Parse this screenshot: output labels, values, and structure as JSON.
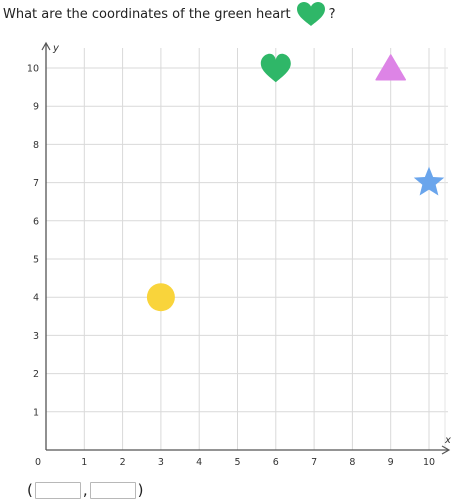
{
  "question": {
    "prefix": "What are the coordinates of the green heart",
    "suffix": "?",
    "icon": "green-heart-icon"
  },
  "chart_data": {
    "type": "scatter",
    "xlabel": "x",
    "ylabel": "y",
    "xlim": [
      0,
      10
    ],
    "ylim": [
      0,
      10
    ],
    "x_ticks": [
      "0",
      "1",
      "2",
      "3",
      "4",
      "5",
      "6",
      "7",
      "8",
      "9",
      "10"
    ],
    "y_ticks": [
      "1",
      "2",
      "3",
      "4",
      "5",
      "6",
      "7",
      "8",
      "9",
      "10"
    ],
    "grid": true,
    "points": [
      {
        "shape": "heart",
        "x": 6,
        "y": 10,
        "color": "#2fb768"
      },
      {
        "shape": "triangle",
        "x": 9,
        "y": 10,
        "color": "#dd84e6"
      },
      {
        "shape": "star",
        "x": 10,
        "y": 7,
        "color": "#6aa5ec"
      },
      {
        "shape": "circle",
        "x": 3,
        "y": 4,
        "color": "#f9d43b"
      }
    ]
  },
  "answer": {
    "open": "(",
    "comma": ",",
    "close": ")",
    "x_value": "",
    "y_value": ""
  }
}
